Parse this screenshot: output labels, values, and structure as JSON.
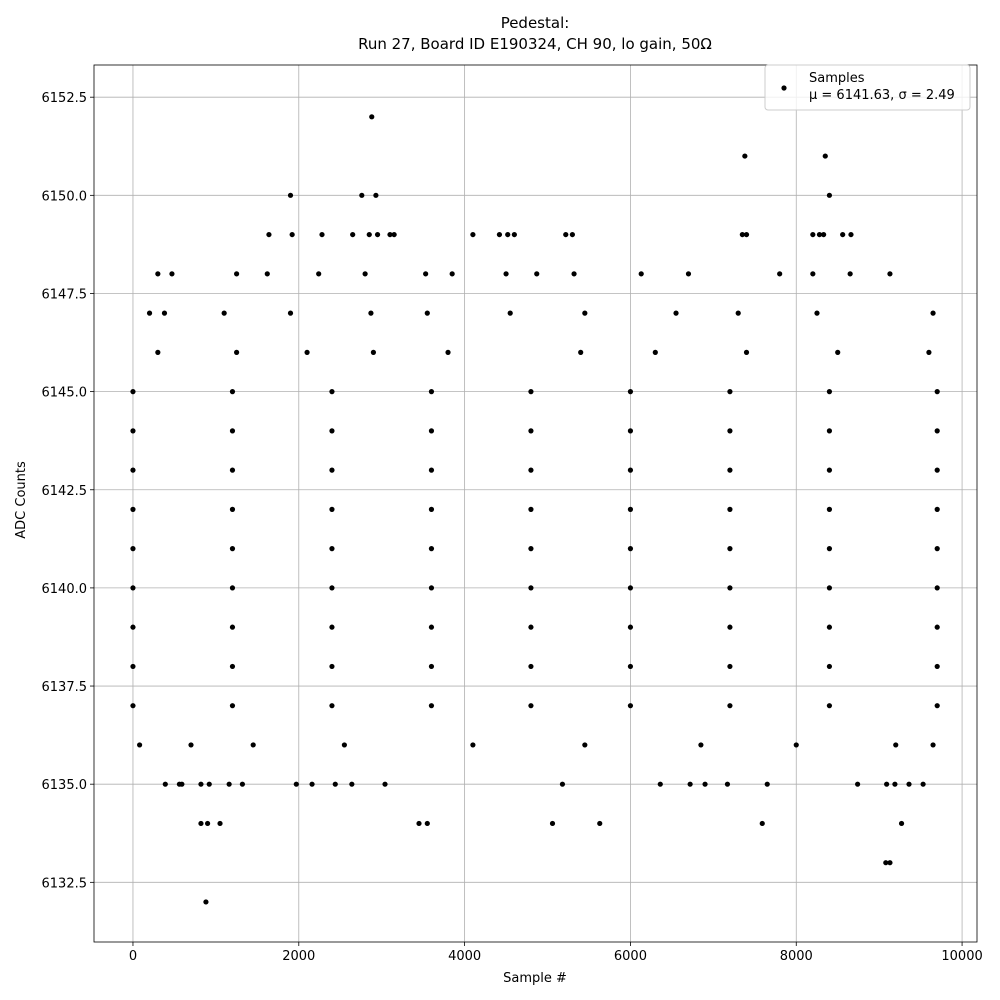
{
  "chart_data": {
    "type": "scatter",
    "title": "Pedestal:",
    "subtitle": "Run 27, Board ID E190324, CH 90, lo gain, 50Ω",
    "x_label": "Sample #",
    "y_label": "ADC Counts",
    "legend_note": "μ = 6141.63, σ = 2.49",
    "legend_position": "upper right",
    "grid": true,
    "xlim": [
      -470,
      10180
    ],
    "ylim": [
      6130.98,
      6153.32
    ],
    "xticks": [
      0,
      2000,
      4000,
      6000,
      8000,
      10000
    ],
    "yticks": [
      6132.5,
      {
        "value": 6135,
        "label": "6135.0"
      },
      6137.5,
      {
        "value": 6140,
        "label": "6140.0"
      },
      6142.5,
      {
        "value": 6145,
        "label": "6145.0"
      },
      6147.5,
      {
        "value": 6150,
        "label": "6150.0"
      },
      6152.5
    ],
    "x": [
      0,
      1200,
      2400,
      3600,
      4800,
      6000,
      7200,
      8400,
      9700,
      0,
      1200,
      2400,
      3600,
      4800,
      6000,
      7200,
      8400,
      9700,
      0,
      1200,
      2400,
      3600,
      4800,
      6000,
      7200,
      8400,
      9700,
      0,
      1200,
      2400,
      3600,
      4800,
      6000,
      7200,
      8400,
      9700,
      0,
      1200,
      2400,
      3600,
      4800,
      6000,
      7200,
      8400,
      9700,
      0,
      1200,
      2400,
      3600,
      4800,
      6000,
      7200,
      8400,
      9700,
      0,
      1200,
      2400,
      3600,
      4800,
      6000,
      7200,
      8400,
      9700,
      0,
      1200,
      2400,
      3600,
      4800,
      6000,
      7200,
      8400,
      9700,
      0,
      1200,
      2400,
      3600,
      4800,
      6000,
      7200,
      8400,
      9700,
      80,
      700,
      1450,
      2550,
      4100,
      5450,
      6850,
      8000,
      9200,
      9650,
      300,
      1250,
      2100,
      2900,
      3800,
      5400,
      6300,
      7400,
      8500,
      9600,
      200,
      380,
      1100,
      1900,
      2870,
      3550,
      4550,
      5450,
      6550,
      7300,
      8250,
      9650,
      300,
      470,
      1250,
      1620,
      2240,
      2800,
      3530,
      3850,
      4500,
      4870,
      5320,
      6130,
      6700,
      7800,
      8200,
      8650,
      9130,
      1640,
      1920,
      2280,
      2650,
      2850,
      2950,
      3100,
      3150,
      4100,
      4420,
      4520,
      4600,
      5220,
      5300,
      7350,
      7400,
      8200,
      8280,
      8330,
      8560,
      8660,
      1900,
      2760,
      2930,
      8400,
      7380,
      8350,
      2880,
      390,
      560,
      590,
      820,
      920,
      1160,
      1320,
      1970,
      2160,
      2440,
      2640,
      3040,
      5180,
      6360,
      6720,
      6900,
      7170,
      7650,
      8740,
      9090,
      9190,
      9360,
      9530,
      820,
      900,
      1050,
      3450,
      3550,
      5060,
      5630,
      7590,
      9270,
      9080,
      9130,
      880
    ],
    "series": [
      {
        "name": "Samples",
        "color": "#000000",
        "values": [
          6137,
          6137,
          6137,
          6137,
          6137,
          6137,
          6137,
          6137,
          6137,
          6138,
          6138,
          6138,
          6138,
          6138,
          6138,
          6138,
          6138,
          6138,
          6139,
          6139,
          6139,
          6139,
          6139,
          6139,
          6139,
          6139,
          6139,
          6140,
          6140,
          6140,
          6140,
          6140,
          6140,
          6140,
          6140,
          6140,
          6141,
          6141,
          6141,
          6141,
          6141,
          6141,
          6141,
          6141,
          6141,
          6142,
          6142,
          6142,
          6142,
          6142,
          6142,
          6142,
          6142,
          6142,
          6143,
          6143,
          6143,
          6143,
          6143,
          6143,
          6143,
          6143,
          6143,
          6144,
          6144,
          6144,
          6144,
          6144,
          6144,
          6144,
          6144,
          6144,
          6145,
          6145,
          6145,
          6145,
          6145,
          6145,
          6145,
          6145,
          6145,
          6136,
          6136,
          6136,
          6136,
          6136,
          6136,
          6136,
          6136,
          6136,
          6136,
          6146,
          6146,
          6146,
          6146,
          6146,
          6146,
          6146,
          6146,
          6146,
          6146,
          6147,
          6147,
          6147,
          6147,
          6147,
          6147,
          6147,
          6147,
          6147,
          6147,
          6147,
          6147,
          6148,
          6148,
          6148,
          6148,
          6148,
          6148,
          6148,
          6148,
          6148,
          6148,
          6148,
          6148,
          6148,
          6148,
          6148,
          6148,
          6148,
          6149,
          6149,
          6149,
          6149,
          6149,
          6149,
          6149,
          6149,
          6149,
          6149,
          6149,
          6149,
          6149,
          6149,
          6149,
          6149,
          6149,
          6149,
          6149,
          6149,
          6149,
          6150,
          6150,
          6150,
          6150,
          6151,
          6151,
          6152,
          6135,
          6135,
          6135,
          6135,
          6135,
          6135,
          6135,
          6135,
          6135,
          6135,
          6135,
          6135,
          6135,
          6135,
          6135,
          6135,
          6135,
          6135,
          6135,
          6135,
          6135,
          6135,
          6135,
          6134,
          6134,
          6134,
          6134,
          6134,
          6134,
          6134,
          6134,
          6134,
          6133,
          6133,
          6132
        ]
      }
    ]
  }
}
